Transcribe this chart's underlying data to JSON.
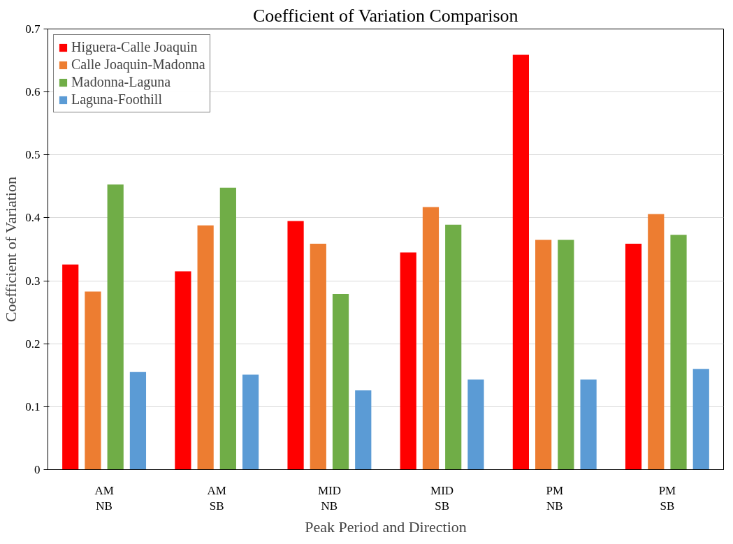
{
  "chart_data": {
    "type": "bar",
    "title": "Coefficient of Variation Comparison",
    "xlabel": "Peak Period and Direction",
    "ylabel": "Coefficient of Variation",
    "categories": [
      "AM\nNB",
      "AM\nSB",
      "MID\nNB",
      "MID\nSB",
      "PM\nNB",
      "PM\nSB"
    ],
    "series": [
      {
        "name": "Higuera-Calle Joaquin",
        "color": "#ff0000",
        "values": [
          0.326,
          0.315,
          0.395,
          0.345,
          0.659,
          0.359
        ]
      },
      {
        "name": "Calle Joaquin-Madonna",
        "color": "#ed7d31",
        "values": [
          0.283,
          0.388,
          0.359,
          0.417,
          0.365,
          0.406
        ]
      },
      {
        "name": "Madonna-Laguna",
        "color": "#70ad47",
        "values": [
          0.453,
          0.448,
          0.279,
          0.389,
          0.365,
          0.373
        ]
      },
      {
        "name": "Laguna-Foothill",
        "color": "#5b9bd5",
        "values": [
          0.155,
          0.151,
          0.126,
          0.143,
          0.143,
          0.16
        ]
      }
    ],
    "ylim": [
      0,
      0.7
    ],
    "yticks": [
      0,
      {
        "value": 0.1,
        "label": "0.1"
      },
      {
        "value": 0.2,
        "label": "0.2"
      },
      {
        "value": 0.3,
        "label": "0.3"
      },
      {
        "value": 0.4,
        "label": "0.4"
      },
      {
        "value": 0.5,
        "label": "0.5"
      },
      {
        "value": 0.6,
        "label": "0.6"
      },
      {
        "value": 0.7,
        "label": "0.7"
      }
    ],
    "grid": "y",
    "legend": "top left"
  }
}
